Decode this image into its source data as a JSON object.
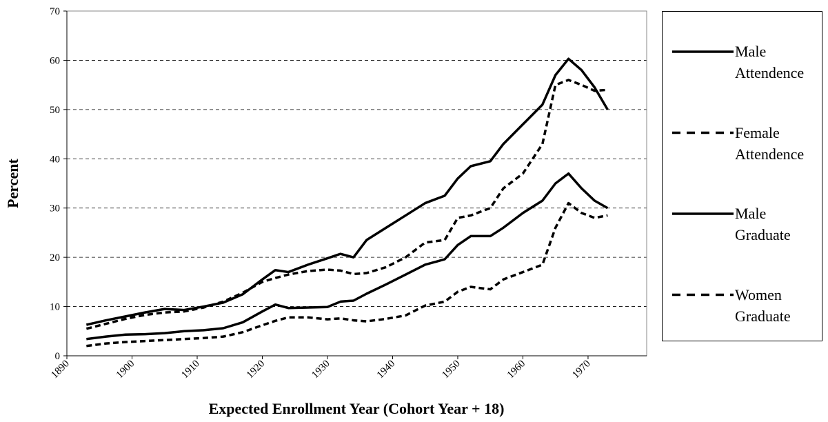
{
  "chart_data": {
    "type": "line",
    "xlabel": "Expected Enrollment Year (Cohort Year + 18)",
    "ylabel": "Percent",
    "x": [
      1893,
      1896,
      1899,
      1902,
      1905,
      1908,
      1911,
      1914,
      1917,
      1920,
      1922,
      1924,
      1927,
      1930,
      1932,
      1934,
      1936,
      1939,
      1942,
      1945,
      1948,
      1950,
      1952,
      1955,
      1957,
      1960,
      1963,
      1965,
      1967,
      1969,
      1971,
      1973
    ],
    "series": [
      {
        "name": "Male Attendence",
        "color": "#000000",
        "dash": false,
        "values": [
          6.3,
          7.2,
          8,
          8.8,
          9.5,
          9.3,
          10,
          10.8,
          12.5,
          15.5,
          17.4,
          17,
          18.5,
          19.8,
          20.7,
          20,
          23.5,
          26,
          28.5,
          31,
          32.5,
          36,
          38.5,
          39.5,
          43,
          47,
          51,
          57,
          60.3,
          58,
          54.5,
          50
        ]
      },
      {
        "name": "Female Attendence",
        "color": "#000000",
        "dash": true,
        "values": [
          5.5,
          6.5,
          7.5,
          8.3,
          8.8,
          9,
          9.8,
          11,
          12.8,
          15,
          15.8,
          16.5,
          17.2,
          17.5,
          17.3,
          16.6,
          16.8,
          18,
          20,
          23,
          23.5,
          28,
          28.5,
          30,
          34,
          37,
          43,
          55,
          56,
          55,
          53.8,
          54
        ]
      },
      {
        "name": "Male Graduate",
        "color": "#000000",
        "dash": false,
        "values": [
          3.4,
          3.9,
          4.3,
          4.4,
          4.6,
          5,
          5.2,
          5.6,
          6.8,
          9,
          10.4,
          9.7,
          9.8,
          9.9,
          11,
          11.2,
          12.6,
          14.5,
          16.5,
          18.5,
          19.6,
          22.5,
          24.3,
          24.3,
          26,
          29,
          31.5,
          35,
          37,
          34,
          31.5,
          30
        ]
      },
      {
        "name": "Women Graduate",
        "color": "#000000",
        "dash": true,
        "values": [
          2,
          2.5,
          2.8,
          3,
          3.2,
          3.4,
          3.6,
          3.9,
          4.8,
          6.2,
          7.1,
          7.8,
          7.8,
          7.4,
          7.6,
          7.2,
          7,
          7.5,
          8.2,
          10.2,
          11,
          13,
          14,
          13.5,
          15.5,
          17,
          18.5,
          26,
          31,
          29,
          28,
          28.5
        ]
      }
    ],
    "xlim": [
      1890,
      1979
    ],
    "xticks": [
      1890,
      1900,
      1910,
      1920,
      1930,
      1940,
      1950,
      1960,
      1970
    ],
    "ylim": [
      0,
      70
    ],
    "yticks": [
      0,
      10,
      20,
      30,
      40,
      50,
      60,
      70
    ],
    "grid": true,
    "legend": "right"
  }
}
